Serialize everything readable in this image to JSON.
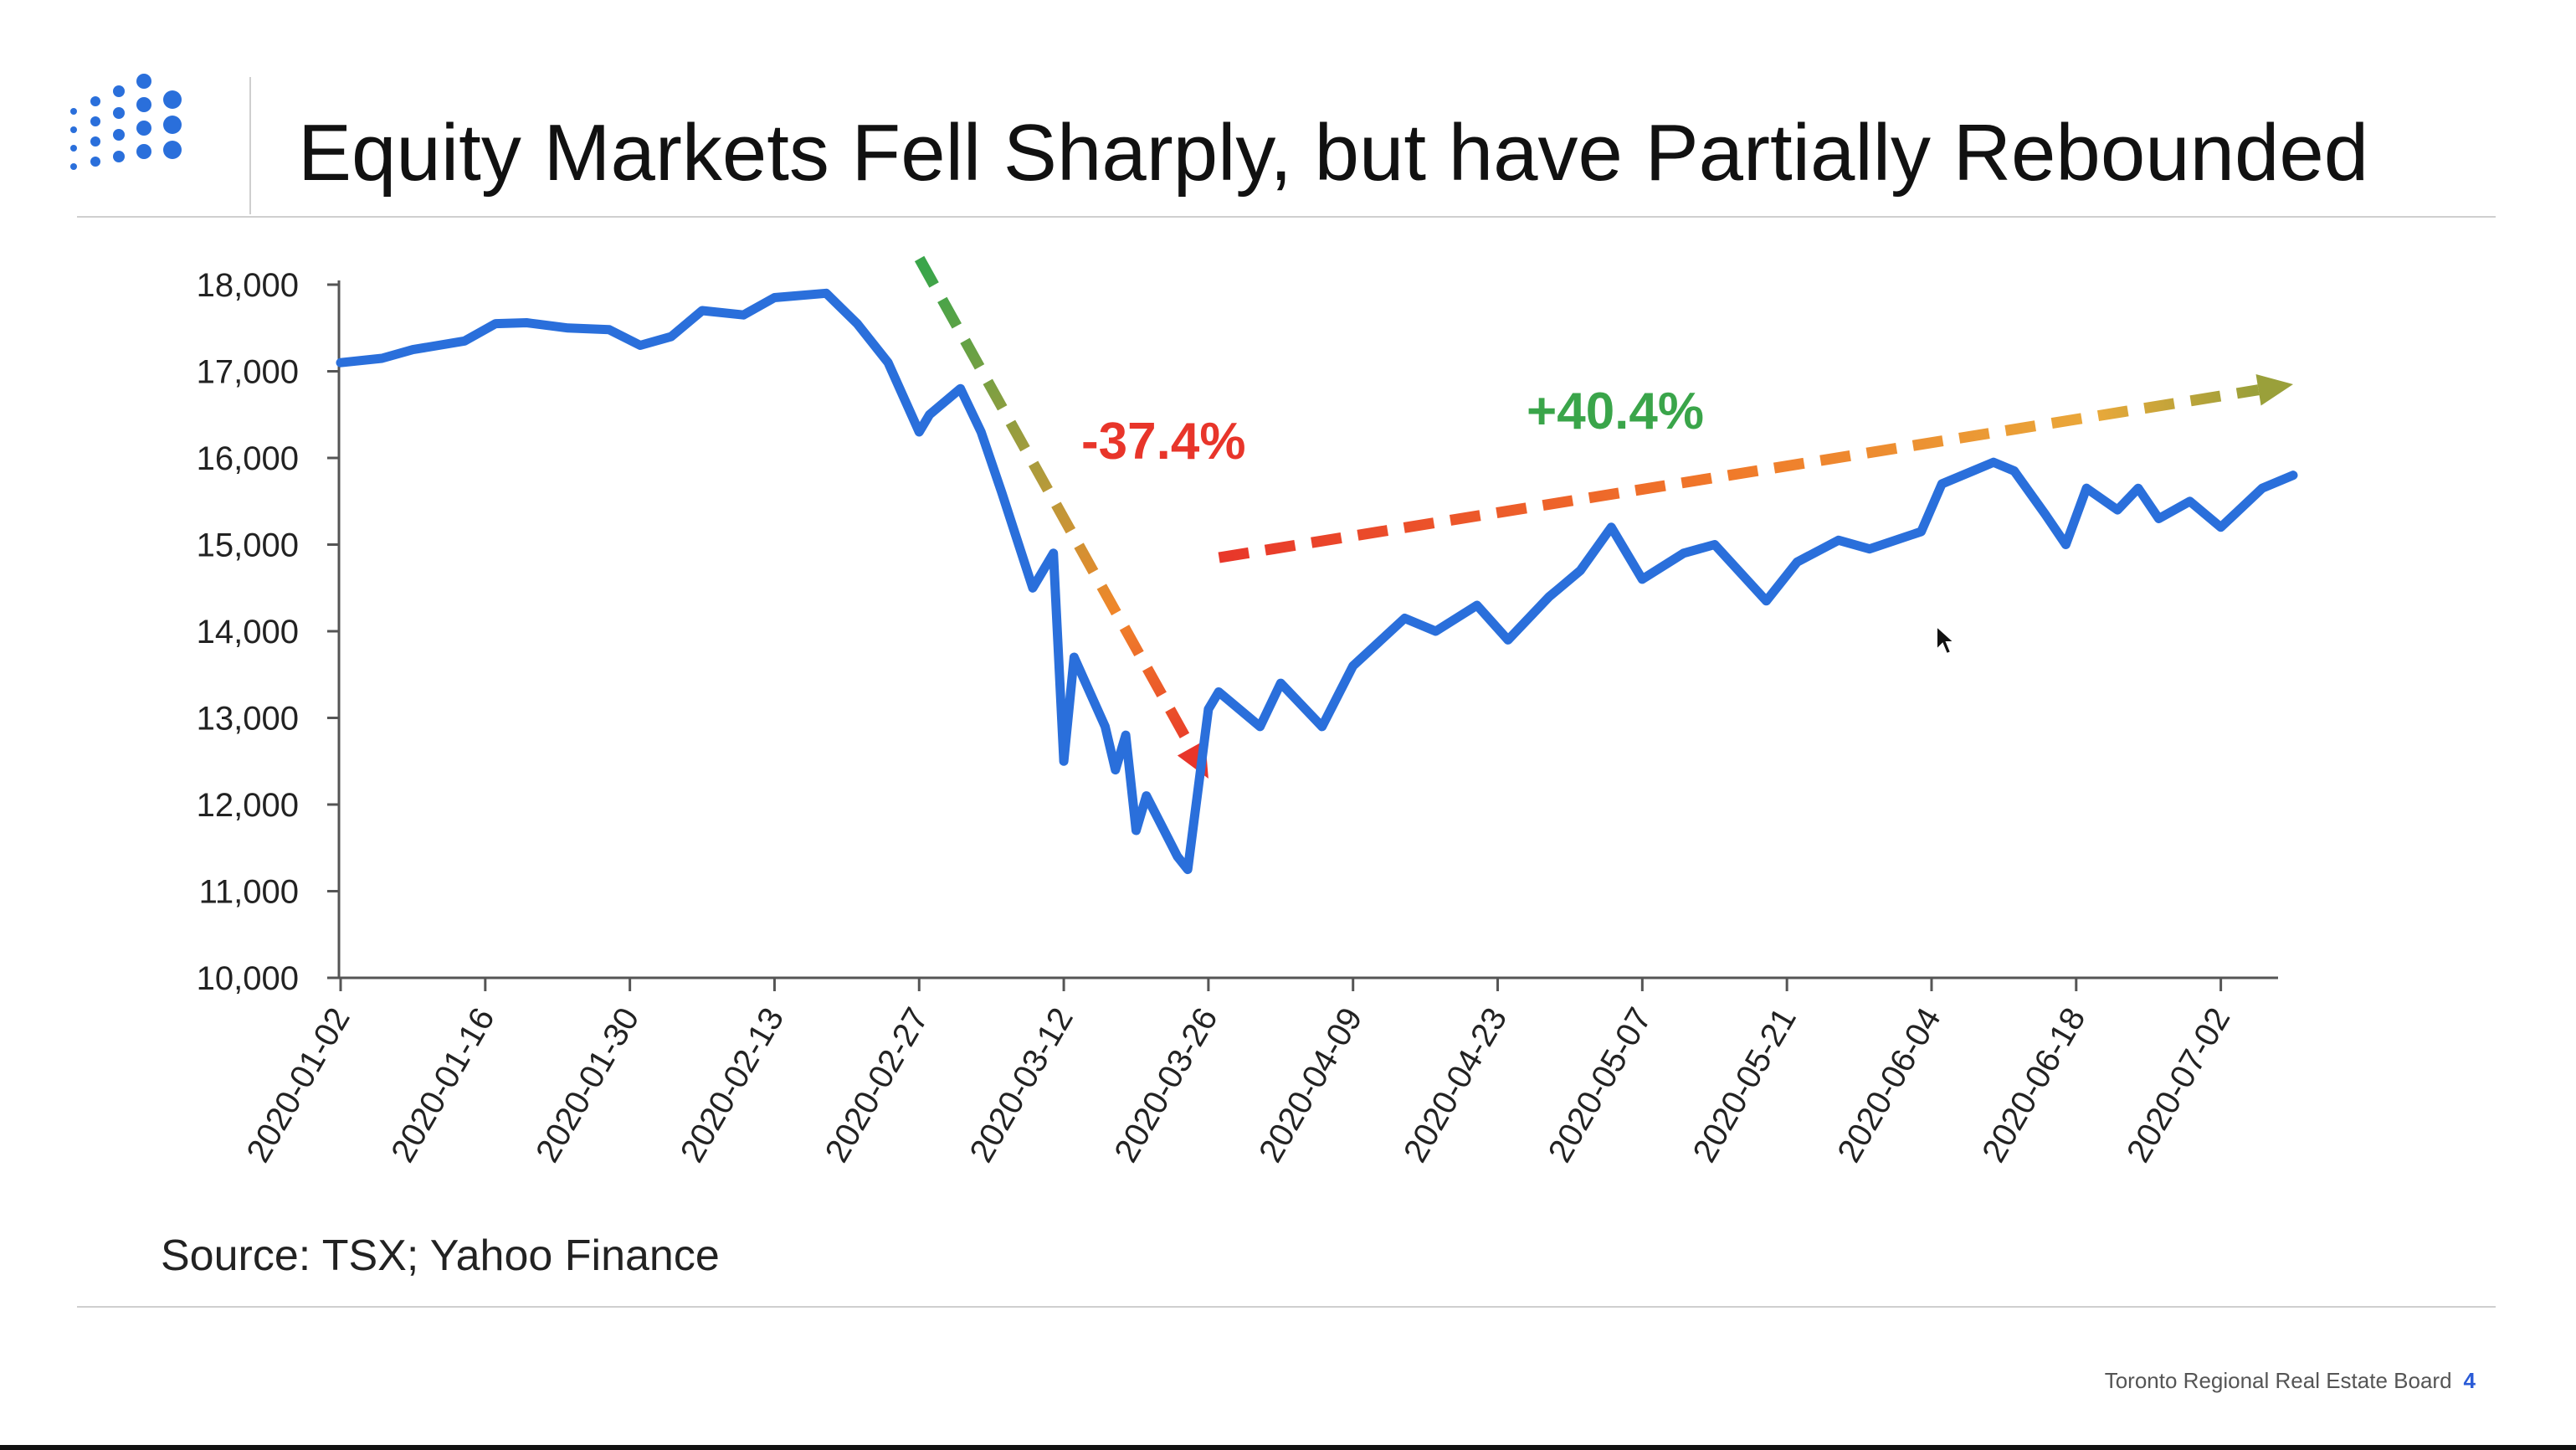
{
  "slide": {
    "title": "Equity Markets Fell Sharply, but have Partially Rebounded",
    "source": "Source: TSX; Yahoo Finance",
    "footer_org": "Toronto Regional Real Estate Board",
    "page_number": "4",
    "colors": {
      "title_text": "#111111",
      "rule": "#cfcfcf",
      "logo_blue": "#2a6fdb",
      "page_number": "#2a5bd7"
    }
  },
  "chart_data": {
    "type": "line",
    "series": [
      {
        "color": "#2a6fdb",
        "x": [
          "2020-01-02",
          "2020-01-06",
          "2020-01-09",
          "2020-01-14",
          "2020-01-17",
          "2020-01-20",
          "2020-01-24",
          "2020-01-28",
          "2020-01-31",
          "2020-02-03",
          "2020-02-06",
          "2020-02-10",
          "2020-02-13",
          "2020-02-18",
          "2020-02-21",
          "2020-02-24",
          "2020-02-27",
          "2020-02-28",
          "2020-03-02",
          "2020-03-04",
          "2020-03-06",
          "2020-03-09",
          "2020-03-11",
          "2020-03-12",
          "2020-03-13",
          "2020-03-16",
          "2020-03-17",
          "2020-03-18",
          "2020-03-19",
          "2020-03-20",
          "2020-03-23",
          "2020-03-24",
          "2020-03-26",
          "2020-03-27",
          "2020-03-31",
          "2020-04-02",
          "2020-04-06",
          "2020-04-09",
          "2020-04-14",
          "2020-04-17",
          "2020-04-21",
          "2020-04-24",
          "2020-04-28",
          "2020-04-29",
          "2020-05-01",
          "2020-05-04",
          "2020-05-07",
          "2020-05-11",
          "2020-05-14",
          "2020-05-19",
          "2020-05-22",
          "2020-05-26",
          "2020-05-29",
          "2020-06-03",
          "2020-06-05",
          "2020-06-08",
          "2020-06-10",
          "2020-06-12",
          "2020-06-15",
          "2020-06-17",
          "2020-06-19",
          "2020-06-22",
          "2020-06-24",
          "2020-06-26",
          "2020-06-29",
          "2020-07-02",
          "2020-07-06",
          "2020-07-09"
        ],
        "values": [
          17100,
          17150,
          17250,
          17350,
          17550,
          17560,
          17500,
          17480,
          17300,
          17400,
          17700,
          17650,
          17850,
          17900,
          17550,
          17100,
          16300,
          16500,
          16800,
          16300,
          15600,
          14500,
          14900,
          12500,
          13700,
          12900,
          12400,
          12800,
          11700,
          12100,
          11400,
          11250,
          13100,
          13300,
          12900,
          13400,
          12900,
          13600,
          14150,
          14000,
          14300,
          13900,
          14400,
          14500,
          14700,
          15200,
          14600,
          14900,
          15000,
          14350,
          14800,
          15050,
          14950,
          15150,
          15700,
          15850,
          15950,
          15850,
          15350,
          15000,
          15650,
          15400,
          15650,
          15300,
          15500,
          15200,
          15650,
          15800
        ]
      }
    ],
    "yticks": [
      10000,
      11000,
      12000,
      13000,
      14000,
      15000,
      16000,
      17000,
      18000
    ],
    "ytick_labels": [
      "10,000",
      "11,000",
      "12,000",
      "13,000",
      "14,000",
      "15,000",
      "16,000",
      "17,000",
      "18,000"
    ],
    "xticks": [
      "2020-01-02",
      "2020-01-16",
      "2020-01-30",
      "2020-02-13",
      "2020-02-27",
      "2020-03-12",
      "2020-03-26",
      "2020-04-09",
      "2020-04-23",
      "2020-05-07",
      "2020-05-21",
      "2020-06-04",
      "2020-06-18",
      "2020-07-02"
    ],
    "xlim": [
      "2020-01-02",
      "2020-07-08"
    ],
    "ylim": [
      10000,
      18000
    ],
    "grid": false,
    "legend": "none",
    "annotations": [
      {
        "text": "-37.4%",
        "color": "#e8352a",
        "style": "dashed-arrow-down",
        "from": [
          "2020-02-28",
          18300
        ],
        "to": [
          "2020-03-26",
          12300
        ]
      },
      {
        "text": "+40.4%",
        "color": "#3aa54a",
        "style": "dashed-arrow-up",
        "from": [
          "2020-03-28",
          14850
        ],
        "to": [
          "2020-07-09",
          16850
        ]
      }
    ]
  }
}
